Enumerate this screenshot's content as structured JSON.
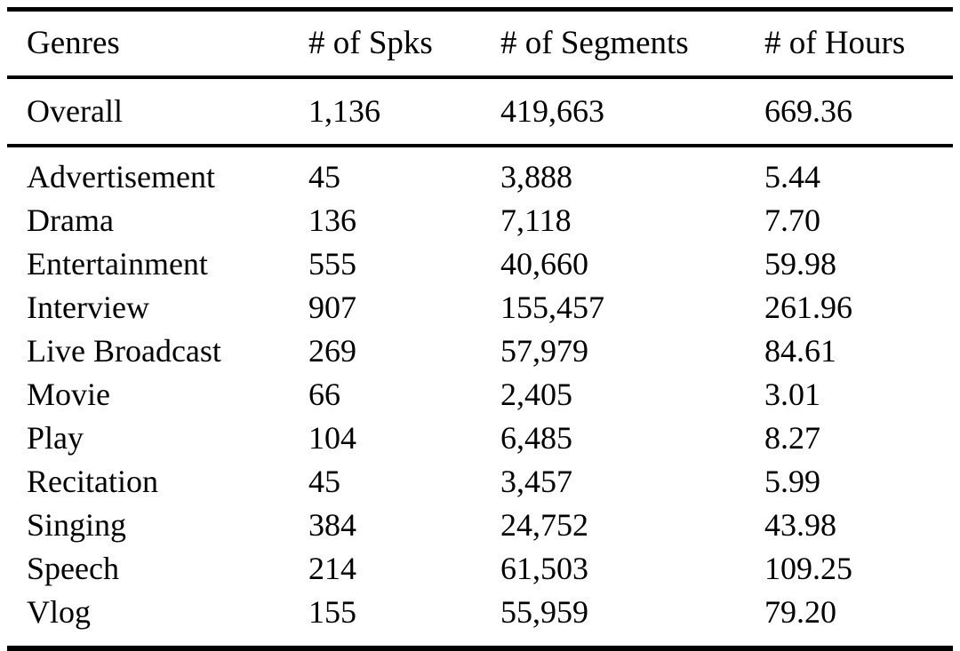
{
  "table": {
    "headers": [
      "Genres",
      "# of Spks",
      "# of Segments",
      "# of Hours"
    ],
    "overall": [
      "Overall",
      "1,136",
      "419,663",
      "669.36"
    ],
    "rows": [
      [
        "Advertisement",
        "45",
        "3,888",
        "5.44"
      ],
      [
        "Drama",
        "136",
        "7,118",
        "7.70"
      ],
      [
        "Entertainment",
        "555",
        "40,660",
        "59.98"
      ],
      [
        "Interview",
        "907",
        "155,457",
        "261.96"
      ],
      [
        "Live Broadcast",
        "269",
        "57,979",
        "84.61"
      ],
      [
        "Movie",
        "66",
        "2,405",
        "3.01"
      ],
      [
        "Play",
        "104",
        "6,485",
        "8.27"
      ],
      [
        "Recitation",
        "45",
        "3,457",
        "5.99"
      ],
      [
        "Singing",
        "384",
        "24,752",
        "43.98"
      ],
      [
        "Speech",
        "214",
        "61,503",
        "109.25"
      ],
      [
        "Vlog",
        "155",
        "55,959",
        "79.20"
      ]
    ],
    "colors": {
      "text": "#000000",
      "background": "#ffffff",
      "rule": "#000000"
    }
  }
}
